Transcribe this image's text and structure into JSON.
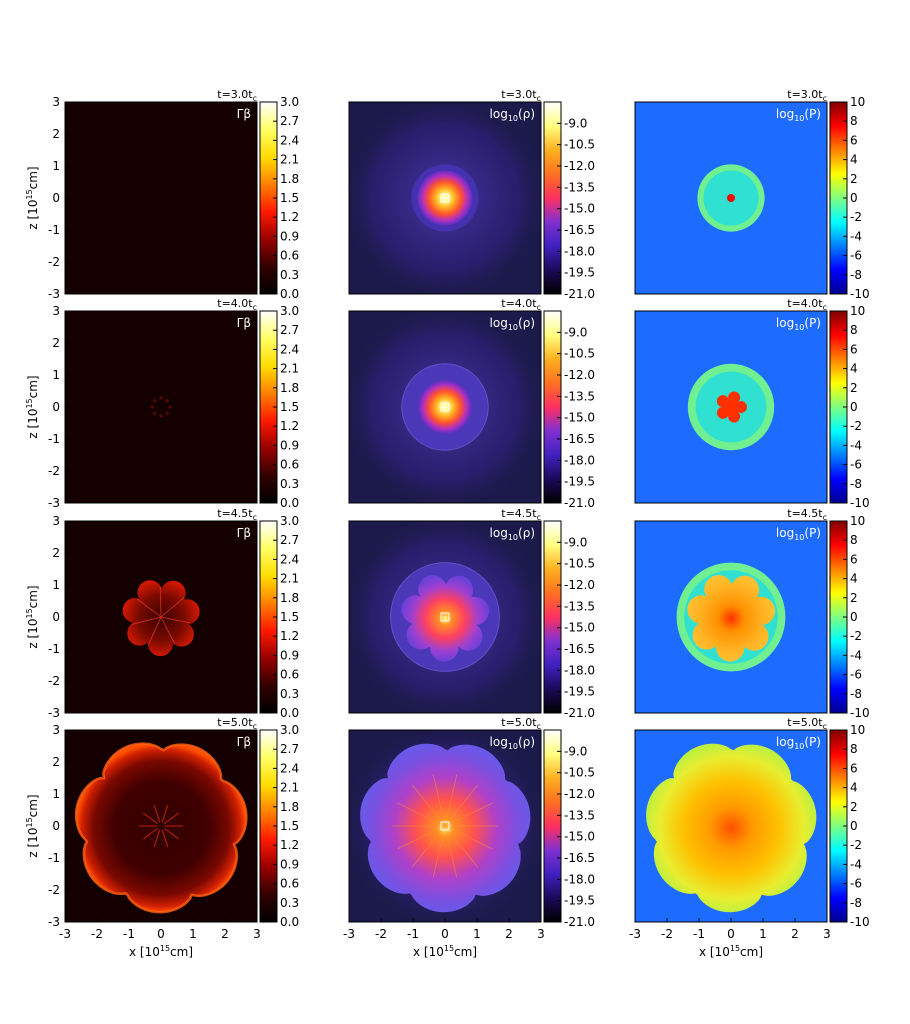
{
  "chart_data": {
    "type": "heatmap",
    "xlabel": "x [10",
    "xlabel_exp": "15",
    "xlabel_unit": "cm]",
    "ylabel": "z [10",
    "ylabel_exp": "15",
    "ylabel_unit": "cm]",
    "xlim": [
      -3,
      3
    ],
    "ylim": [
      -3,
      3
    ],
    "axis_ticks": [
      "-3",
      "-2",
      "-1",
      "0",
      "1",
      "2",
      "3"
    ],
    "time_labels": [
      {
        "prefix": "t=3.0t",
        "sub": "c"
      },
      {
        "prefix": "t=4.0t",
        "sub": "c"
      },
      {
        "prefix": "t=4.5t",
        "sub": "c"
      },
      {
        "prefix": "t=5.0t",
        "sub": "c"
      }
    ],
    "quantities": [
      {
        "id": "gamma_beta",
        "label": "Γβ",
        "label_sub": "",
        "label_rest": "",
        "colormap": "hot",
        "colormap_stops": [
          "#000000",
          "#330000",
          "#990000",
          "#ff1a00",
          "#ff8000",
          "#ffdd00",
          "#ffff66",
          "#ffffff"
        ],
        "vmin": 0.0,
        "vmax": 3.0,
        "colorbar_ticks": [
          "0.0",
          "0.3",
          "0.6",
          "0.9",
          "1.2",
          "1.5",
          "1.8",
          "2.1",
          "2.4",
          "2.7",
          "3.0"
        ],
        "panel_background": "#140000"
      },
      {
        "id": "log_density",
        "label": "log",
        "label_sub": "10",
        "label_rest": "(ρ)",
        "colormap": "gnuplot2",
        "colormap_stops": [
          "#000000",
          "#1a0a5a",
          "#4020c0",
          "#8030d0",
          "#ff3060",
          "#ff7020",
          "#ffb020",
          "#ffff80",
          "#ffffff"
        ],
        "vmin": -21.0,
        "vmax": -7.5,
        "colorbar_ticks": [
          "-21.0",
          "-19.5",
          "-18.0",
          "-16.5",
          "-15.0",
          "-13.5",
          "-12.0",
          "-10.5",
          "-9.0"
        ],
        "panel_background": "#1c1a4a"
      },
      {
        "id": "log_pressure",
        "label": "log",
        "label_sub": "10",
        "label_rest": "(P)",
        "colormap": "jet",
        "colormap_stops": [
          "#00008f",
          "#0000ff",
          "#0080ff",
          "#00ffff",
          "#80ff80",
          "#ffff00",
          "#ff8000",
          "#ff0000",
          "#800000"
        ],
        "vmin": -10,
        "vmax": 10,
        "colorbar_ticks": [
          "-10",
          "-8",
          "-6",
          "-4",
          "-2",
          "0",
          "2",
          "4",
          "6",
          "8",
          "10"
        ],
        "panel_background": "#1e6cff"
      }
    ],
    "snapshots": [
      {
        "time": 3.0,
        "shell_radius": 1.05,
        "structure": "spherical core",
        "lobes": 0
      },
      {
        "time": 4.0,
        "shell_radius": 1.35,
        "structure": "small multi-lobed core",
        "lobes": 5
      },
      {
        "time": 4.5,
        "shell_radius": 1.7,
        "structure": "7-lobed flower",
        "lobes": 7
      },
      {
        "time": 5.0,
        "shell_radius": 2.75,
        "structure": "7-lobed flower filling domain",
        "lobes": 7
      }
    ]
  }
}
